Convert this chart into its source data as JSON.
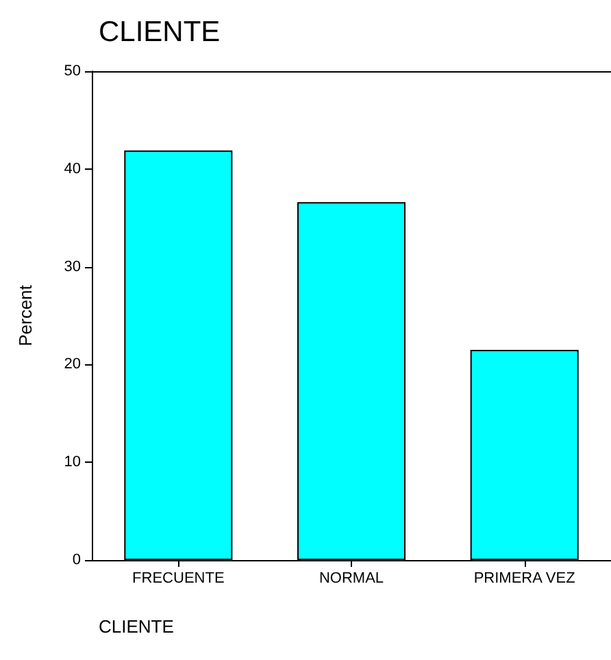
{
  "chart_data": {
    "type": "bar",
    "title": "CLIENTE",
    "xlabel": "CLIENTE",
    "ylabel": "Percent",
    "categories": [
      "FRECUENTE",
      "NORMAL",
      "PRIMERA VEZ"
    ],
    "values": [
      41.9,
      36.6,
      21.5
    ],
    "color": "#00ffff",
    "ylim": [
      0,
      50
    ],
    "yticks": [
      0,
      10,
      20,
      30,
      40,
      50
    ]
  }
}
